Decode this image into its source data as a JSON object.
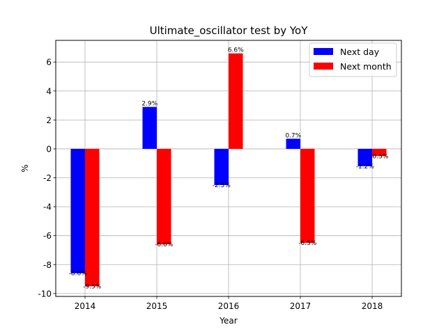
{
  "chart_data": {
    "type": "bar",
    "title": "Ultimate_oscillator test by YoY",
    "xlabel": "Year",
    "ylabel": "%",
    "categories": [
      "2014",
      "2015",
      "2016",
      "2017",
      "2018"
    ],
    "ylim": [
      -10.2,
      7.5
    ],
    "yticks": [
      -10,
      -8,
      -6,
      -4,
      -2,
      0,
      2,
      4,
      6
    ],
    "grid": true,
    "legend_position": "top-right",
    "series": [
      {
        "name": "Next day",
        "color": "#0000ff",
        "values": [
          -8.6,
          2.9,
          -2.5,
          0.7,
          -1.2
        ],
        "labels": [
          "-8.6%",
          "2.9%",
          "-2.5%",
          "0.7%",
          "-1.2%"
        ]
      },
      {
        "name": "Next month",
        "color": "#ff0000",
        "values": [
          -9.5,
          -6.6,
          6.6,
          -6.5,
          -0.5
        ],
        "labels": [
          "-9.5%",
          "-6.6%",
          "6.6%",
          "-6.5%",
          "-0.5%"
        ]
      }
    ]
  }
}
